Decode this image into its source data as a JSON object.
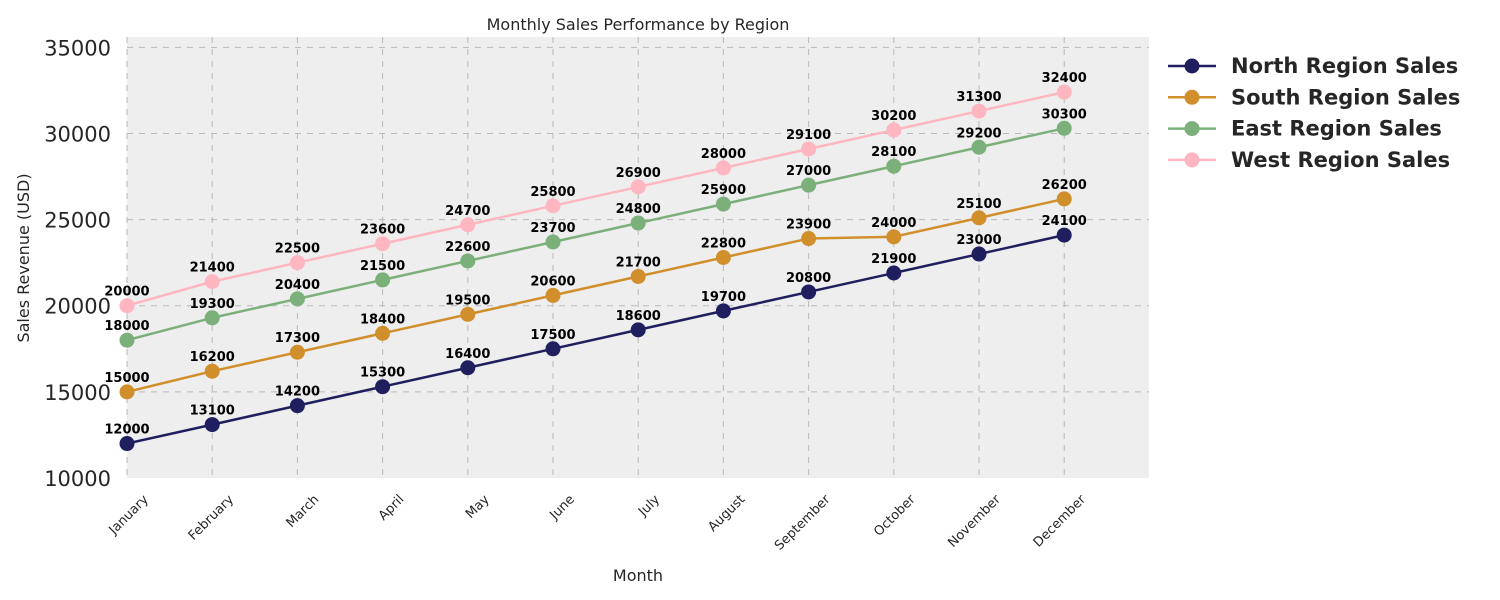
{
  "chart_data": {
    "type": "line",
    "title": "Monthly Sales Performance by Region",
    "xlabel": "Month",
    "ylabel": "Sales Revenue (USD)",
    "categories": [
      "January",
      "February",
      "March",
      "April",
      "May",
      "June",
      "July",
      "August",
      "September",
      "October",
      "November",
      "December"
    ],
    "ylim": [
      10000,
      35600
    ],
    "yticks": [
      "10000",
      "15000",
      "20000",
      "25000",
      "30000",
      "35000"
    ],
    "grid": true,
    "legend_position": "top-right, outside plot",
    "series": [
      {
        "name": "North Region Sales",
        "color": "#1f1f5f",
        "values": [
          12000,
          13100,
          14200,
          15300,
          16400,
          17500,
          18600,
          19700,
          20800,
          21900,
          23000,
          24100
        ]
      },
      {
        "name": "South Region Sales",
        "color": "#d18f2c",
        "values": [
          15000,
          16200,
          17300,
          18400,
          19500,
          20600,
          21700,
          22800,
          23900,
          24000,
          25100,
          26200
        ]
      },
      {
        "name": "East Region Sales",
        "color": "#7bb07b",
        "values": [
          18000,
          19300,
          20400,
          21500,
          22600,
          23700,
          24800,
          25900,
          27000,
          28100,
          29200,
          30300
        ]
      },
      {
        "name": "West Region Sales",
        "color": "#ffb6c1",
        "values": [
          20000,
          21400,
          22500,
          23600,
          24700,
          25800,
          26900,
          28000,
          29100,
          30200,
          31300,
          32400
        ]
      }
    ]
  }
}
